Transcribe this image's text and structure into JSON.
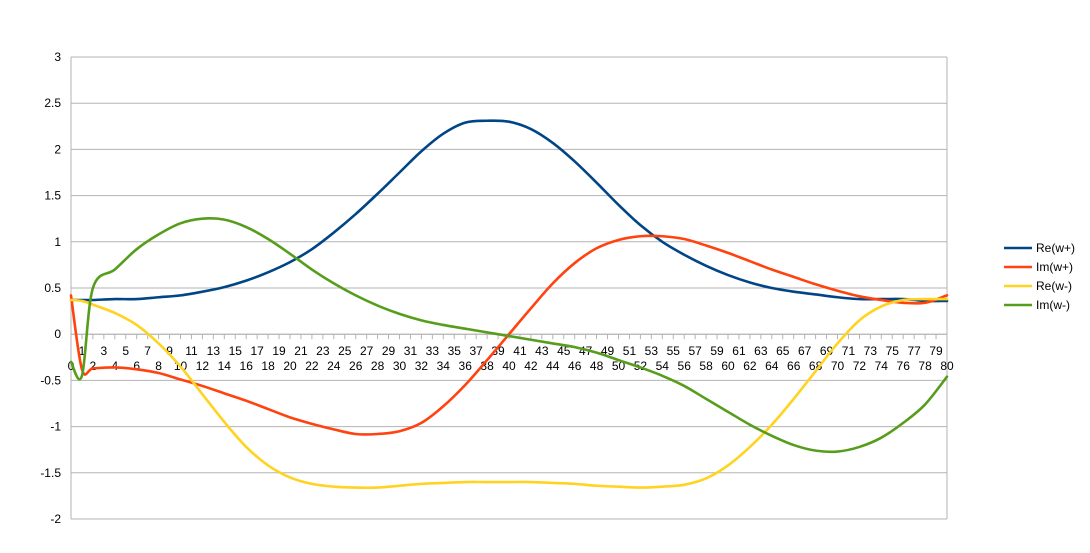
{
  "chart_data": {
    "type": "line",
    "title": "",
    "xlabel": "",
    "ylabel": "",
    "x_range": [
      0,
      80
    ],
    "ylim": [
      -2,
      3
    ],
    "y_ticks": [
      "-2",
      "-1.5",
      "-1",
      "-0.5",
      "0",
      "0.5",
      "1",
      "1.5",
      "2",
      "2.5",
      "3"
    ],
    "x_ticks": [
      "0",
      "1",
      "2",
      "3",
      "4",
      "5",
      "6",
      "7",
      "8",
      "9",
      "10",
      "11",
      "12",
      "13",
      "14",
      "15",
      "16",
      "17",
      "18",
      "19",
      "20",
      "21",
      "22",
      "23",
      "24",
      "25",
      "26",
      "27",
      "28",
      "29",
      "30",
      "31",
      "32",
      "33",
      "34",
      "35",
      "36",
      "37",
      "38",
      "39",
      "40",
      "41",
      "42",
      "43",
      "44",
      "45",
      "46",
      "47",
      "48",
      "49",
      "50",
      "51",
      "52",
      "53",
      "54",
      "55",
      "56",
      "57",
      "58",
      "59",
      "60",
      "61",
      "62",
      "63",
      "64",
      "65",
      "66",
      "67",
      "68",
      "69",
      "70",
      "71",
      "72",
      "73",
      "74",
      "75",
      "76",
      "77",
      "78",
      "79",
      "80"
    ],
    "grid": true,
    "legend_position": "right",
    "x": [
      0,
      1,
      2,
      4,
      6,
      8,
      10,
      12,
      14,
      16,
      18,
      20,
      22,
      24,
      26,
      28,
      30,
      32,
      34,
      36,
      38,
      40,
      42,
      44,
      46,
      48,
      50,
      52,
      54,
      56,
      58,
      60,
      62,
      64,
      66,
      68,
      70,
      72,
      74,
      76,
      78,
      80
    ],
    "series": [
      {
        "name": "Re(w+)",
        "color": "#004586",
        "values": [
          0.37,
          0.37,
          0.37,
          0.38,
          0.38,
          0.4,
          0.42,
          0.46,
          0.51,
          0.58,
          0.67,
          0.78,
          0.92,
          1.1,
          1.3,
          1.52,
          1.75,
          1.98,
          2.17,
          2.29,
          2.31,
          2.3,
          2.22,
          2.07,
          1.87,
          1.64,
          1.4,
          1.18,
          1.0,
          0.86,
          0.74,
          0.64,
          0.56,
          0.5,
          0.46,
          0.43,
          0.4,
          0.38,
          0.38,
          0.38,
          0.36,
          0.36
        ]
      },
      {
        "name": "Im(w+)",
        "color": "#ff420e",
        "values": [
          0.42,
          -0.38,
          -0.37,
          -0.36,
          -0.38,
          -0.42,
          -0.49,
          -0.56,
          -0.64,
          -0.72,
          -0.81,
          -0.9,
          -0.97,
          -1.03,
          -1.08,
          -1.08,
          -1.05,
          -0.96,
          -0.78,
          -0.55,
          -0.28,
          0.0,
          0.28,
          0.55,
          0.77,
          0.93,
          1.02,
          1.06,
          1.06,
          1.03,
          0.96,
          0.88,
          0.79,
          0.7,
          0.62,
          0.54,
          0.47,
          0.41,
          0.37,
          0.34,
          0.34,
          0.42
        ]
      },
      {
        "name": "Re(w-)",
        "color": "#ffd320",
        "values": [
          0.37,
          0.36,
          0.32,
          0.23,
          0.1,
          -0.1,
          -0.35,
          -0.65,
          -0.95,
          -1.22,
          -1.42,
          -1.55,
          -1.62,
          -1.65,
          -1.66,
          -1.66,
          -1.64,
          -1.62,
          -1.61,
          -1.6,
          -1.6,
          -1.6,
          -1.6,
          -1.61,
          -1.62,
          -1.64,
          -1.65,
          -1.66,
          -1.65,
          -1.63,
          -1.56,
          -1.42,
          -1.22,
          -0.98,
          -0.7,
          -0.4,
          -0.1,
          0.15,
          0.3,
          0.37,
          0.38,
          0.38
        ]
      },
      {
        "name": "Im(w-)",
        "color": "#579d1c",
        "values": [
          -0.3,
          -0.45,
          0.5,
          0.7,
          0.92,
          1.08,
          1.2,
          1.25,
          1.24,
          1.16,
          1.03,
          0.87,
          0.7,
          0.55,
          0.42,
          0.31,
          0.22,
          0.15,
          0.1,
          0.06,
          0.02,
          -0.02,
          -0.06,
          -0.1,
          -0.14,
          -0.2,
          -0.28,
          -0.36,
          -0.45,
          -0.56,
          -0.7,
          -0.84,
          -0.98,
          -1.1,
          -1.2,
          -1.26,
          -1.27,
          -1.22,
          -1.12,
          -0.96,
          -0.76,
          -0.46
        ]
      }
    ]
  }
}
